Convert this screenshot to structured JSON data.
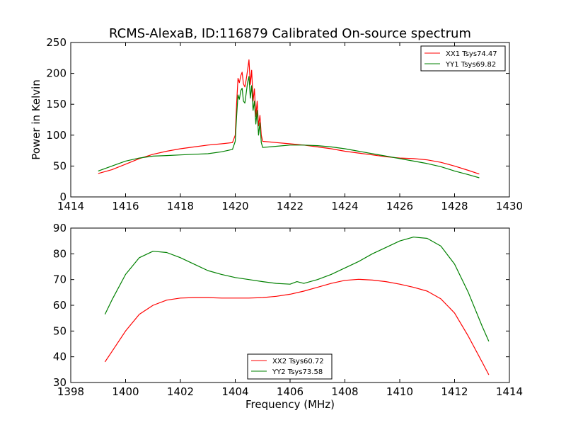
{
  "title": "RCMS-AlexaB, ID:116879 Calibrated On-source spectrum",
  "colors": {
    "red": "#ff0000",
    "green": "#008000",
    "axes": "#000000",
    "background": "#ffffff"
  },
  "chart_data": [
    {
      "type": "line",
      "ylabel": "Power in Kelvin",
      "xlabel": "",
      "xlim": [
        1414,
        1430
      ],
      "ylim": [
        0,
        250
      ],
      "xticks": [
        "1414",
        "1416",
        "1418",
        "1420",
        "1422",
        "1424",
        "1426",
        "1428",
        "1430"
      ],
      "yticks": [
        "0",
        "50",
        "100",
        "150",
        "200",
        "250"
      ],
      "legend_position": "top-right",
      "grid": false,
      "series": [
        {
          "name": "XX1 Tsys74.47",
          "color": "#ff0000",
          "points": [
            [
              1415.0,
              38
            ],
            [
              1415.5,
              44
            ],
            [
              1416.0,
              53
            ],
            [
              1416.5,
              62
            ],
            [
              1417.0,
              69
            ],
            [
              1417.5,
              74
            ],
            [
              1418.0,
              78
            ],
            [
              1418.5,
              81
            ],
            [
              1419.0,
              84
            ],
            [
              1419.5,
              86
            ],
            [
              1419.9,
              88
            ],
            [
              1420.0,
              100
            ],
            [
              1420.05,
              150
            ],
            [
              1420.1,
              192
            ],
            [
              1420.15,
              185
            ],
            [
              1420.2,
              196
            ],
            [
              1420.25,
              202
            ],
            [
              1420.3,
              183
            ],
            [
              1420.35,
              178
            ],
            [
              1420.4,
              190
            ],
            [
              1420.45,
              205
            ],
            [
              1420.5,
              222
            ],
            [
              1420.55,
              182
            ],
            [
              1420.6,
              205
            ],
            [
              1420.65,
              155
            ],
            [
              1420.7,
              175
            ],
            [
              1420.75,
              130
            ],
            [
              1420.8,
              155
            ],
            [
              1420.85,
              115
            ],
            [
              1420.9,
              132
            ],
            [
              1420.95,
              100
            ],
            [
              1421.0,
              90
            ],
            [
              1421.5,
              88
            ],
            [
              1422.0,
              86
            ],
            [
              1422.5,
              84
            ],
            [
              1423.0,
              81
            ],
            [
              1423.5,
              78
            ],
            [
              1424.0,
              74
            ],
            [
              1424.5,
              71
            ],
            [
              1425.0,
              68
            ],
            [
              1425.5,
              65
            ],
            [
              1426.0,
              63
            ],
            [
              1426.5,
              62
            ],
            [
              1427.0,
              60
            ],
            [
              1427.5,
              56
            ],
            [
              1428.0,
              50
            ],
            [
              1428.5,
              43
            ],
            [
              1428.9,
              37
            ]
          ]
        },
        {
          "name": "YY1 Tsys69.82",
          "color": "#008000",
          "points": [
            [
              1415.0,
              42
            ],
            [
              1415.5,
              50
            ],
            [
              1416.0,
              58
            ],
            [
              1416.5,
              63
            ],
            [
              1417.0,
              66
            ],
            [
              1417.5,
              67
            ],
            [
              1418.0,
              68
            ],
            [
              1418.5,
              69
            ],
            [
              1419.0,
              70
            ],
            [
              1419.5,
              73
            ],
            [
              1419.9,
              77
            ],
            [
              1420.0,
              90
            ],
            [
              1420.05,
              130
            ],
            [
              1420.1,
              165
            ],
            [
              1420.15,
              158
            ],
            [
              1420.2,
              172
            ],
            [
              1420.25,
              176
            ],
            [
              1420.3,
              155
            ],
            [
              1420.35,
              152
            ],
            [
              1420.4,
              168
            ],
            [
              1420.45,
              185
            ],
            [
              1420.5,
              195
            ],
            [
              1420.55,
              160
            ],
            [
              1420.6,
              180
            ],
            [
              1420.65,
              140
            ],
            [
              1420.7,
              155
            ],
            [
              1420.75,
              118
            ],
            [
              1420.8,
              140
            ],
            [
              1420.85,
              100
            ],
            [
              1420.9,
              120
            ],
            [
              1420.95,
              88
            ],
            [
              1421.0,
              80
            ],
            [
              1421.5,
              82
            ],
            [
              1422.0,
              84
            ],
            [
              1422.5,
              84
            ],
            [
              1423.0,
              83
            ],
            [
              1423.5,
              81
            ],
            [
              1424.0,
              78
            ],
            [
              1424.5,
              74
            ],
            [
              1425.0,
              70
            ],
            [
              1425.5,
              66
            ],
            [
              1426.0,
              62
            ],
            [
              1426.5,
              58
            ],
            [
              1427.0,
              54
            ],
            [
              1427.5,
              49
            ],
            [
              1428.0,
              42
            ],
            [
              1428.5,
              36
            ],
            [
              1428.9,
              31
            ]
          ]
        }
      ]
    },
    {
      "type": "line",
      "ylabel": "",
      "xlabel": "Frequency (MHz)",
      "xlim": [
        1398,
        1414
      ],
      "ylim": [
        30,
        90
      ],
      "xticks": [
        "1398",
        "1400",
        "1402",
        "1404",
        "1406",
        "1408",
        "1410",
        "1412",
        "1414"
      ],
      "yticks": [
        "30",
        "40",
        "50",
        "60",
        "70",
        "80",
        "90"
      ],
      "legend_position": "lower-center",
      "grid": false,
      "series": [
        {
          "name": "XX2 Tsys60.72",
          "color": "#ff0000",
          "points": [
            [
              1399.25,
              38
            ],
            [
              1399.5,
              42
            ],
            [
              1400.0,
              50
            ],
            [
              1400.5,
              56.5
            ],
            [
              1401.0,
              60
            ],
            [
              1401.5,
              62
            ],
            [
              1402.0,
              62.8
            ],
            [
              1402.5,
              63
            ],
            [
              1403.0,
              63
            ],
            [
              1403.5,
              62.8
            ],
            [
              1404.0,
              62.8
            ],
            [
              1404.5,
              62.8
            ],
            [
              1405.0,
              63
            ],
            [
              1405.5,
              63.5
            ],
            [
              1406.0,
              64.3
            ],
            [
              1406.5,
              65.5
            ],
            [
              1407.0,
              67
            ],
            [
              1407.5,
              68.5
            ],
            [
              1408.0,
              69.7
            ],
            [
              1408.5,
              70.1
            ],
            [
              1409.0,
              69.8
            ],
            [
              1409.5,
              69.2
            ],
            [
              1410.0,
              68.2
            ],
            [
              1410.5,
              67
            ],
            [
              1411.0,
              65.5
            ],
            [
              1411.5,
              62.5
            ],
            [
              1412.0,
              57
            ],
            [
              1412.5,
              48
            ],
            [
              1413.0,
              38
            ],
            [
              1413.25,
              33
            ]
          ]
        },
        {
          "name": "YY2 Tsys73.58",
          "color": "#008000",
          "points": [
            [
              1399.25,
              56.5
            ],
            [
              1399.5,
              62
            ],
            [
              1400.0,
              72
            ],
            [
              1400.5,
              78.5
            ],
            [
              1401.0,
              81
            ],
            [
              1401.5,
              80.5
            ],
            [
              1402.0,
              78.5
            ],
            [
              1402.5,
              76
            ],
            [
              1403.0,
              73.5
            ],
            [
              1403.5,
              72
            ],
            [
              1404.0,
              70.8
            ],
            [
              1404.5,
              70
            ],
            [
              1405.0,
              69.2
            ],
            [
              1405.5,
              68.5
            ],
            [
              1406.0,
              68.2
            ],
            [
              1406.25,
              69.2
            ],
            [
              1406.5,
              68.5
            ],
            [
              1407.0,
              70
            ],
            [
              1407.5,
              72
            ],
            [
              1408.0,
              74.5
            ],
            [
              1408.5,
              77
            ],
            [
              1409.0,
              80
            ],
            [
              1409.5,
              82.5
            ],
            [
              1410.0,
              85
            ],
            [
              1410.5,
              86.5
            ],
            [
              1411.0,
              86
            ],
            [
              1411.5,
              83
            ],
            [
              1412.0,
              76
            ],
            [
              1412.5,
              65
            ],
            [
              1413.0,
              52
            ],
            [
              1413.25,
              46
            ]
          ]
        }
      ]
    }
  ]
}
